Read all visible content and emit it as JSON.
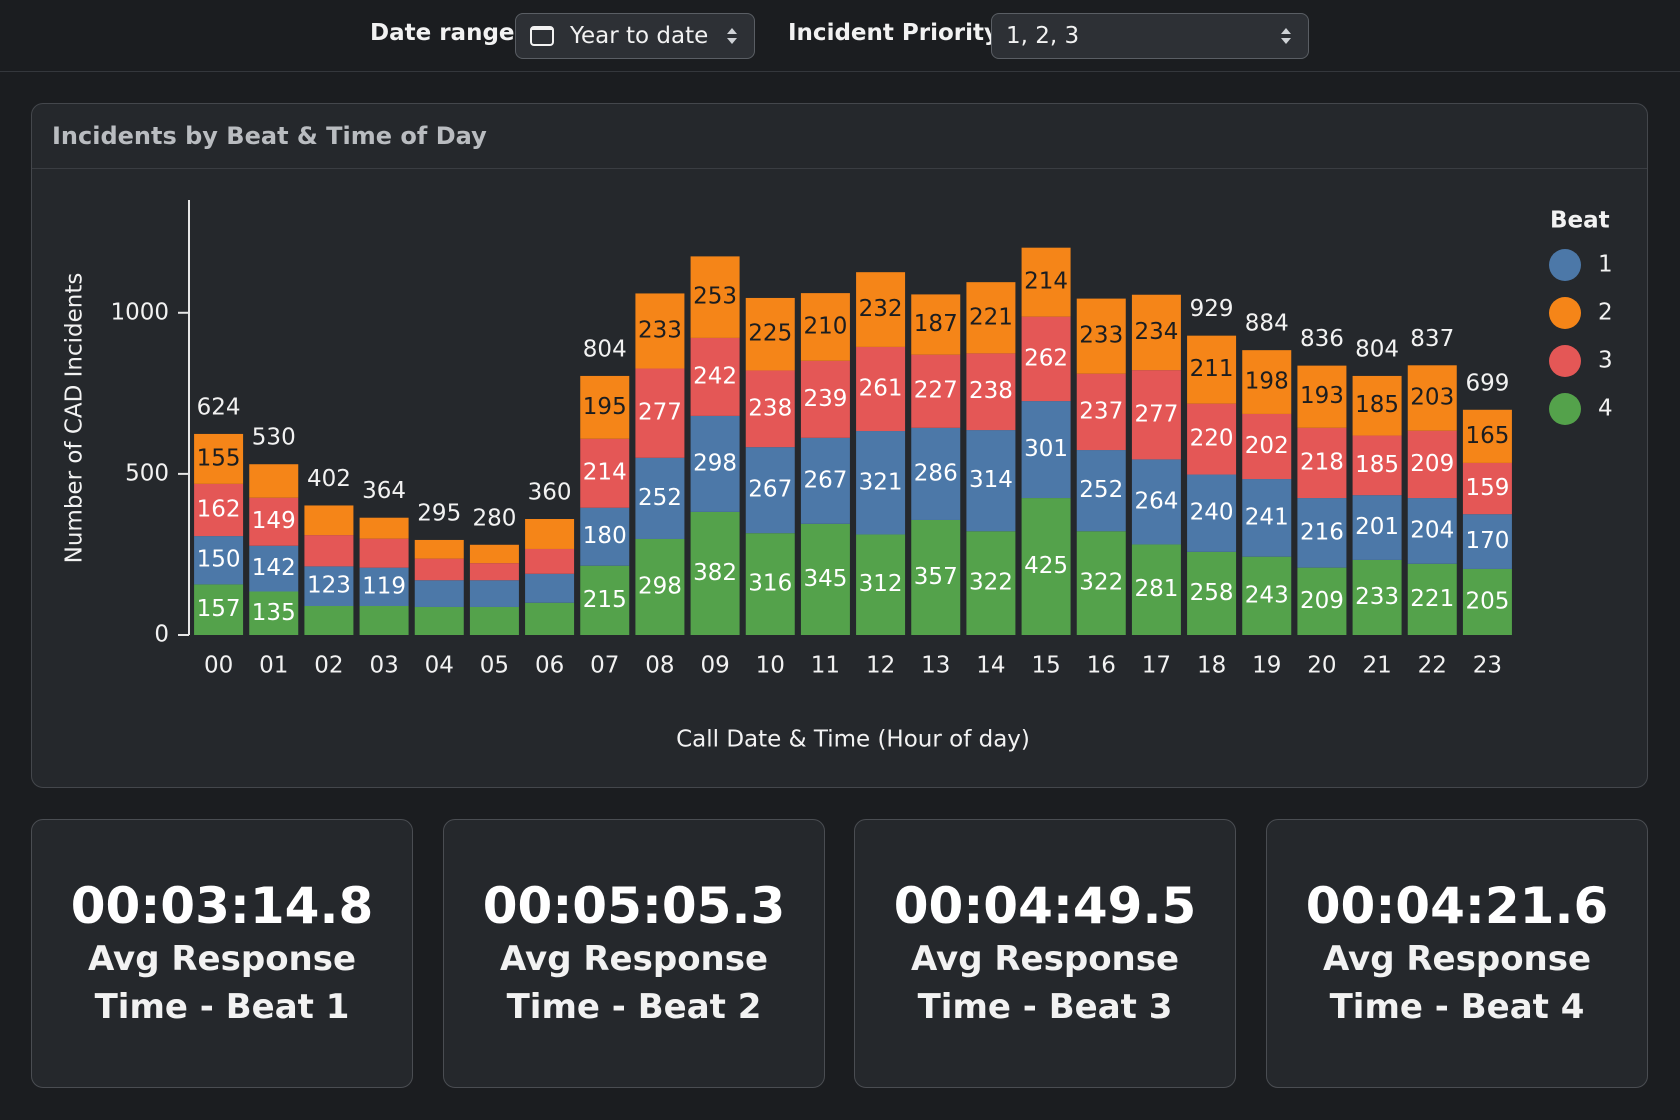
{
  "filters": [
    {
      "label": "Date range",
      "value": "Year to date"
    },
    {
      "label": "Incident Priority",
      "value": "1, 2, 3"
    }
  ],
  "chart_data": {
    "type": "stacked-bar",
    "title": "Incidents by Beat & Time of Day",
    "x_label": "Call Date & Time (Hour of day)",
    "y_label": "Number of CAD Incidents",
    "legend_title": "Beat",
    "legend_position": "right",
    "categories": [
      "00",
      "01",
      "02",
      "03",
      "04",
      "05",
      "06",
      "07",
      "08",
      "09",
      "10",
      "11",
      "12",
      "13",
      "14",
      "15",
      "16",
      "17",
      "18",
      "19",
      "20",
      "21",
      "22",
      "23"
    ],
    "series": [
      {
        "name": "4",
        "color": "#54a24b",
        "values": [
          157,
          135,
          90,
          90,
          87,
          87,
          100,
          215,
          298,
          382,
          316,
          345,
          312,
          357,
          322,
          425,
          322,
          281,
          258,
          243,
          209,
          233,
          221,
          205
        ]
      },
      {
        "name": "1",
        "color": "#4c78a8",
        "values": [
          150,
          142,
          123,
          119,
          83,
          83,
          90,
          180,
          252,
          298,
          267,
          267,
          321,
          286,
          314,
          301,
          252,
          264,
          240,
          241,
          216,
          201,
          204,
          170
        ]
      },
      {
        "name": "3",
        "color": "#e45756",
        "values": [
          162,
          149,
          97,
          90,
          67,
          53,
          77,
          214,
          277,
          242,
          238,
          239,
          261,
          227,
          238,
          262,
          237,
          277,
          220,
          202,
          218,
          185,
          209,
          159
        ]
      },
      {
        "name": "2",
        "color": "#f58518",
        "values": [
          155,
          104,
          92,
          65,
          58,
          57,
          93,
          195,
          233,
          253,
          225,
          210,
          232,
          187,
          221,
          214,
          233,
          234,
          211,
          198,
          193,
          185,
          203,
          165
        ]
      }
    ],
    "totals": [
      624,
      530,
      402,
      364,
      295,
      280,
      360,
      804,
      null,
      null,
      null,
      null,
      null,
      null,
      null,
      null,
      null,
      null,
      929,
      884,
      836,
      804,
      837,
      699
    ],
    "ylim": [
      0,
      1350
    ],
    "yticks": [
      0,
      500,
      1000
    ],
    "grid": false
  },
  "cards": [
    {
      "value": "00:03:14.8",
      "label": "Avg Response Time - Beat 1"
    },
    {
      "value": "00:05:05.3",
      "label": "Avg Response Time - Beat 2"
    },
    {
      "value": "00:04:49.5",
      "label": "Avg Response Time - Beat 3"
    },
    {
      "value": "00:04:21.6",
      "label": "Avg Response Time - Beat 4"
    }
  ]
}
